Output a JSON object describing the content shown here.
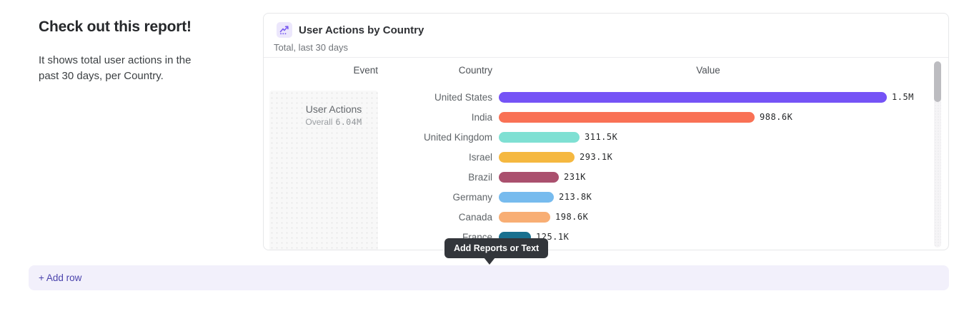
{
  "page": {
    "hero_title": "Check out this report!",
    "hero_description": "It shows total user actions in the past 30 days, per Country."
  },
  "report_card": {
    "title": "User Actions by Country",
    "subtitle": "Total, last 30 days",
    "icon": "chart-trend-icon",
    "icon_colors": {
      "background": "#ece7fc",
      "glyph": "#7a5cf0"
    },
    "columns": {
      "event": "Event",
      "country": "Country",
      "value": "Value"
    },
    "event": {
      "name": "User Actions",
      "aggregate_label": "Overall",
      "aggregate_value": "6.04M"
    }
  },
  "chart_data": {
    "type": "bar",
    "orientation": "horizontal",
    "title": "User Actions by Country",
    "xlabel": "Value",
    "ylabel": "Country",
    "xlim": [
      0,
      1500000
    ],
    "grid": false,
    "categories": [
      "United States",
      "India",
      "United Kingdom",
      "Israel",
      "Brazil",
      "Germany",
      "Canada",
      "France"
    ],
    "values": [
      1500000,
      988600,
      311500,
      293100,
      231000,
      213800,
      198600,
      125100
    ],
    "value_labels": [
      "1.5M",
      "988.6K",
      "311.5K",
      "293.1K",
      "231K",
      "213.8K",
      "198.6K",
      "125.1K"
    ],
    "bar_colors": [
      "#7553f6",
      "#f97155",
      "#7fe0d3",
      "#f5b840",
      "#aa506e",
      "#77bbee",
      "#f8ae74",
      "#19708f"
    ]
  },
  "tooltip": {
    "text": "Add Reports or Text"
  },
  "add_row": {
    "label": "+ Add row"
  }
}
